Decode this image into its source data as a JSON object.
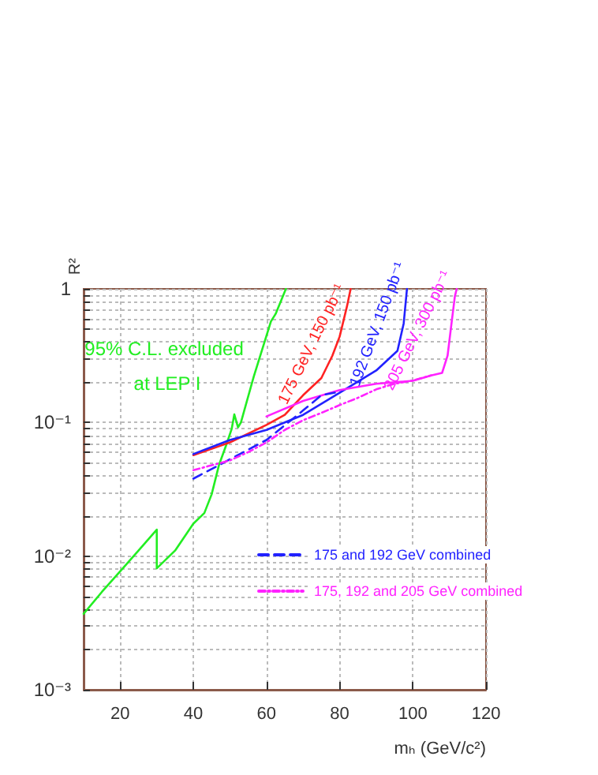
{
  "chart_data": {
    "type": "line",
    "xlabel": "mₕ (GeV/c²)",
    "ylabel": "R²",
    "log": "y",
    "xlim": [
      10,
      120
    ],
    "xticks": [
      20,
      40,
      60,
      80,
      100,
      120
    ],
    "ylim": [
      0.001,
      1
    ],
    "yticks": [
      {
        "value": 0.001,
        "label": "10⁻³"
      },
      {
        "value": 0.002,
        "label": null
      },
      {
        "value": 0.003,
        "label": null
      },
      {
        "value": 0.004,
        "label": null
      },
      {
        "value": 0.005,
        "label": null
      },
      {
        "value": 0.006,
        "label": null
      },
      {
        "value": 0.007,
        "label": null
      },
      {
        "value": 0.008,
        "label": null
      },
      {
        "value": 0.009,
        "label": null
      },
      {
        "value": 0.01,
        "label": "10⁻²"
      },
      {
        "value": 0.02,
        "label": null
      },
      {
        "value": 0.03,
        "label": null
      },
      {
        "value": 0.04,
        "label": null
      },
      {
        "value": 0.05,
        "label": null
      },
      {
        "value": 0.06,
        "label": null
      },
      {
        "value": 0.07,
        "label": null
      },
      {
        "value": 0.08,
        "label": null
      },
      {
        "value": 0.09,
        "label": null
      },
      {
        "value": 0.1,
        "label": "10⁻¹"
      },
      {
        "value": 0.2,
        "label": null
      },
      {
        "value": 0.3,
        "label": null
      },
      {
        "value": 0.4,
        "label": null
      },
      {
        "value": 0.5,
        "label": null
      },
      {
        "value": 0.6,
        "label": null
      },
      {
        "value": 0.7,
        "label": null
      },
      {
        "value": 0.8,
        "label": null
      },
      {
        "value": 0.9,
        "label": null
      },
      {
        "value": 1,
        "label": "1"
      }
    ],
    "grid": true,
    "legend": "right",
    "marker": "none",
    "series": [
      {
        "color": "#22ee22",
        "line_style": "solid",
        "x": [
          10,
          15,
          20,
          25,
          30,
          30,
          35,
          40,
          43,
          45,
          47,
          49,
          50.5,
          51.2,
          52.2,
          53,
          56.5,
          61.2,
          62.5,
          65.3
        ],
        "values": [
          0.0037,
          0.0054,
          0.0077,
          0.011,
          0.0158,
          0.0081,
          0.011,
          0.0175,
          0.021,
          0.029,
          0.048,
          0.068,
          0.09,
          0.115,
          0.092,
          0.1,
          0.22,
          0.57,
          0.65,
          1
        ]
      },
      {
        "name": "175 GeV, 150 pb⁻¹",
        "color": "#ff2222",
        "line_style": "solid",
        "x": [
          40,
          50,
          60,
          65,
          70,
          75,
          78,
          80,
          82,
          83
        ],
        "values": [
          0.057,
          0.071,
          0.096,
          0.114,
          0.16,
          0.215,
          0.316,
          0.44,
          0.74,
          1
        ]
      },
      {
        "name": "192 GeV, 150 pb⁻¹",
        "color": "#2222ff",
        "line_style": "solid",
        "x": [
          40,
          50,
          60,
          70,
          80,
          90,
          95.8,
          97.5,
          98.4
        ],
        "values": [
          0.058,
          0.074,
          0.088,
          0.114,
          0.167,
          0.245,
          0.344,
          0.55,
          1
        ]
      },
      {
        "name": "205 GeV, 300 pb⁻¹",
        "color": "#ff22ff",
        "line_style": "solid",
        "x": [
          60,
          70,
          80,
          90,
          100,
          105,
          108,
          109.5,
          110.5,
          111.5,
          112
        ],
        "values": [
          0.111,
          0.145,
          0.175,
          0.195,
          0.205,
          0.225,
          0.235,
          0.316,
          0.53,
          0.88,
          1
        ]
      },
      {
        "name": "175 and 192 GeV combined",
        "color": "#2222ff",
        "line_style": "dashed",
        "x": [
          40,
          50,
          60,
          70,
          75,
          80
        ],
        "values": [
          0.038,
          0.053,
          0.074,
          0.123,
          0.16,
          0.17
        ]
      },
      {
        "name": "175, 192 and 205 GeV combined",
        "color": "#ff22ff",
        "line_style": "dotted",
        "x": [
          40,
          50,
          55,
          60,
          65,
          70,
          75,
          80,
          85,
          90,
          95,
          100,
          105
        ],
        "values": [
          0.044,
          0.052,
          0.06,
          0.071,
          0.088,
          0.104,
          0.118,
          0.135,
          0.153,
          0.177,
          0.195,
          0.206,
          0.225
        ]
      }
    ],
    "annotations": [
      "95% C.L. excluded",
      "at LEP I"
    ]
  }
}
